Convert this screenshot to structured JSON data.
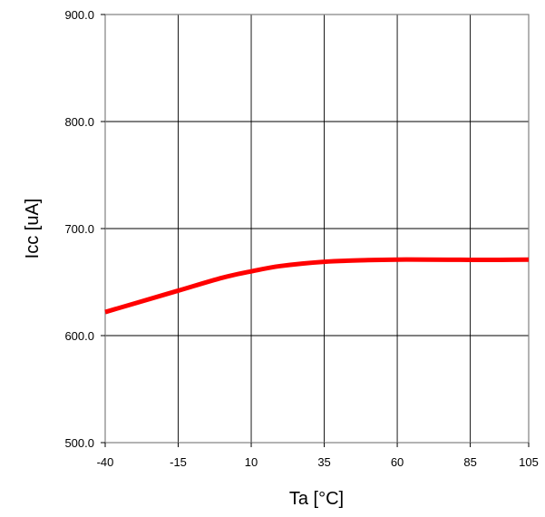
{
  "chart_data": {
    "type": "line",
    "title": "",
    "xlabel": "Ta [°C]",
    "ylabel": "Icc  [uA]",
    "xlim": [
      -40,
      105
    ],
    "ylim": [
      500,
      900
    ],
    "x_ticks": [
      -40,
      -15,
      10,
      35,
      60,
      85,
      105
    ],
    "x_tick_labels": [
      "-40",
      "-15",
      "10",
      "35",
      "60",
      "85",
      "105"
    ],
    "y_ticks": [
      500,
      600,
      700,
      800,
      900
    ],
    "y_tick_labels": [
      "500.0",
      "600.0",
      "700.0",
      "800.0",
      "900.0"
    ],
    "grid": true,
    "legend": "none",
    "colors": {
      "series": "#ff0000",
      "grid": "#000000",
      "frame": "#808080"
    },
    "series": [
      {
        "x": [
          -40,
          -30,
          -15,
          0,
          10,
          20,
          35,
          50,
          60,
          70,
          85,
          95,
          105
        ],
        "y": [
          622,
          630,
          642,
          654,
          660,
          665,
          669,
          670.5,
          671,
          671,
          670.8,
          670.8,
          671
        ]
      }
    ]
  }
}
